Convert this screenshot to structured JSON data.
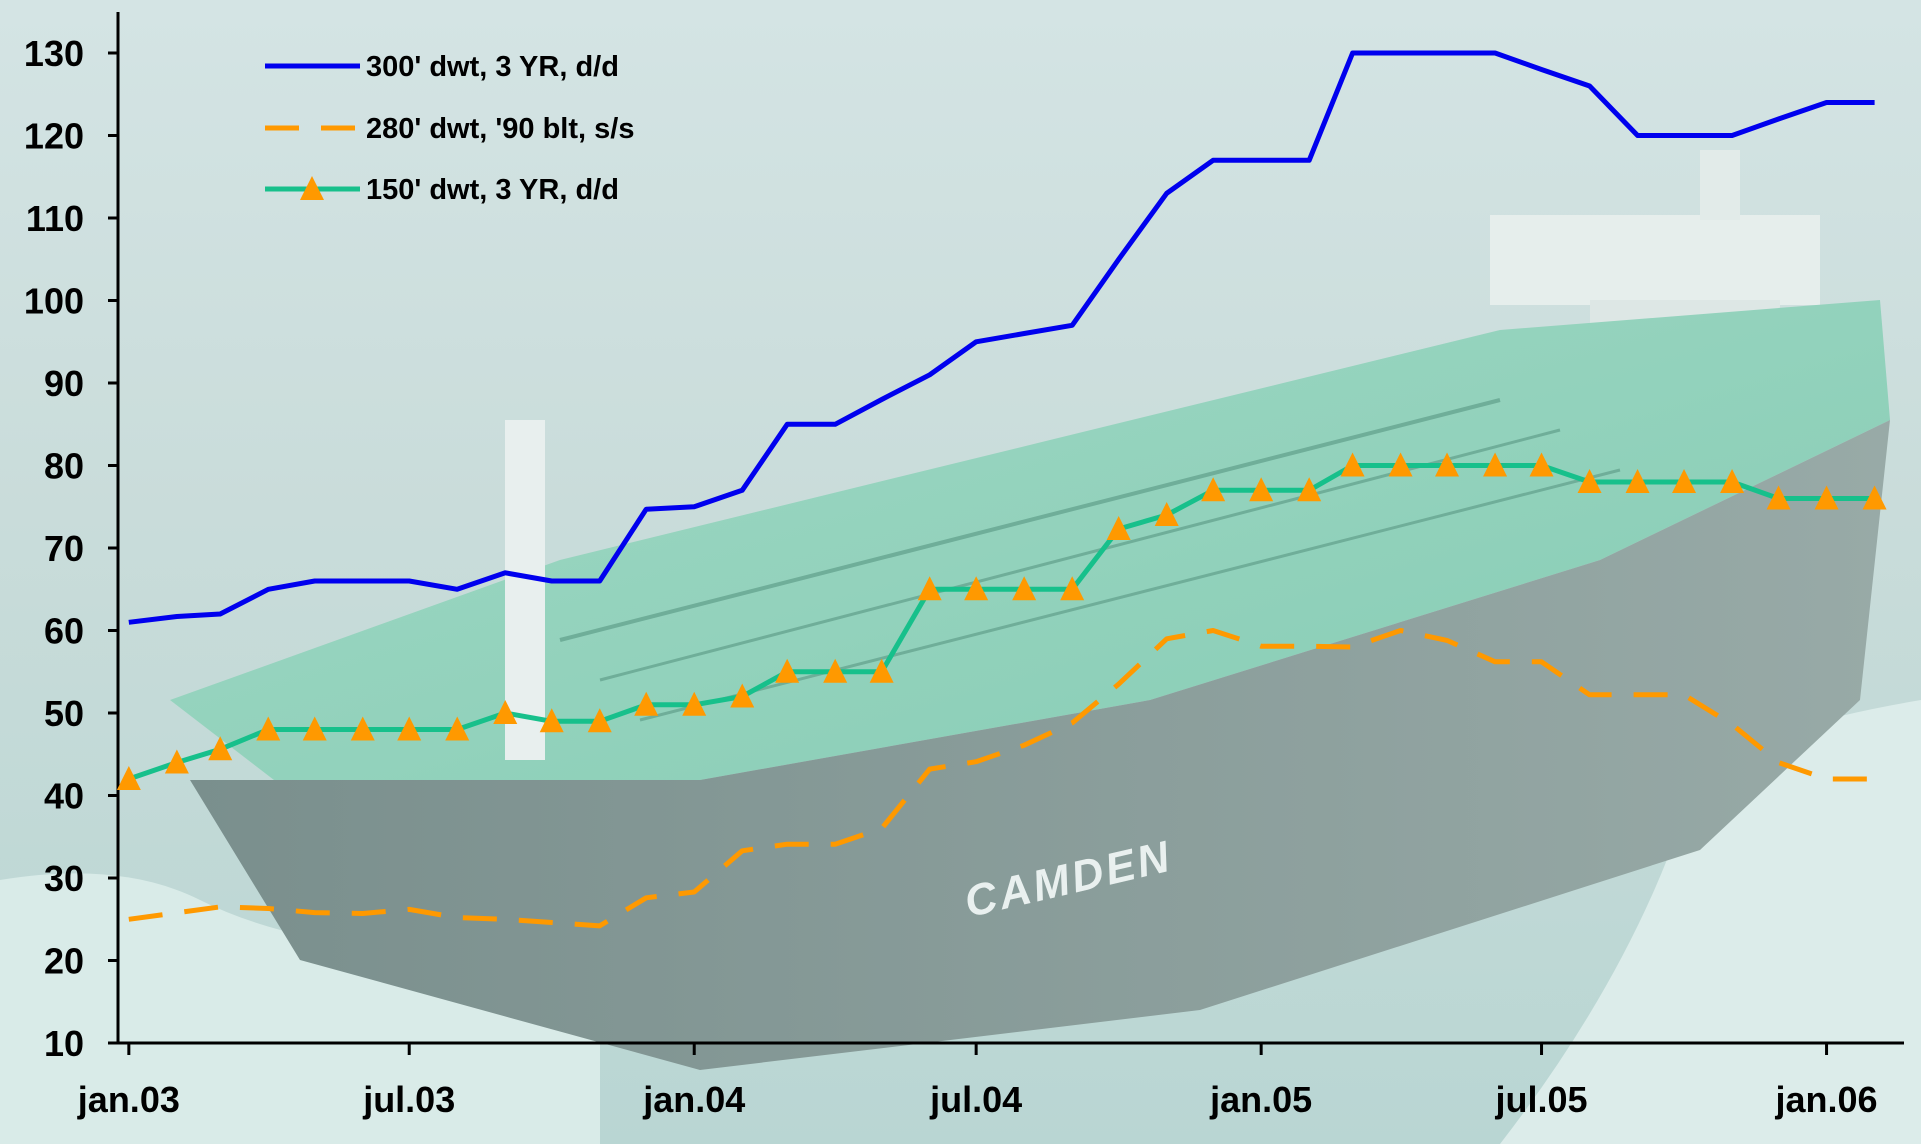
{
  "chart_data": {
    "type": "line",
    "title": "",
    "xlabel": "",
    "ylabel": "",
    "ylim": [
      10,
      130
    ],
    "yticks": [
      10,
      20,
      30,
      40,
      50,
      60,
      70,
      80,
      90,
      100,
      110,
      120,
      130
    ],
    "xlim": [
      "2002-12-25",
      "2006-02-20"
    ],
    "xtick_labels": [
      "jan.03",
      "jul.03",
      "jan.04",
      "jul.04",
      "jan.05",
      "jul.05",
      "jan.06"
    ],
    "xtick_dates": [
      "2003-01-01",
      "2003-07-01",
      "2004-01-01",
      "2004-07-01",
      "2005-01-01",
      "2005-07-01",
      "2006-01-01"
    ],
    "grid": false,
    "legend_position": "top-left",
    "background": "photo of oil tanker CAMDEN at sea",
    "series": [
      {
        "name": "300' dwt, 3 YR, d/d",
        "color": "#0000ee",
        "style": "solid",
        "marker": "none",
        "x": [
          "2003-01-01",
          "2003-02-01",
          "2003-03-01",
          "2003-04-01",
          "2003-05-01",
          "2003-06-01",
          "2003-07-01",
          "2003-08-01",
          "2003-09-01",
          "2003-10-01",
          "2003-11-01",
          "2003-12-01",
          "2004-01-01",
          "2004-02-01",
          "2004-03-01",
          "2004-04-01",
          "2004-05-01",
          "2004-06-01",
          "2004-07-01",
          "2004-08-01",
          "2004-09-01",
          "2004-10-01",
          "2004-11-01",
          "2004-12-01",
          "2005-01-01",
          "2005-02-01",
          "2005-03-01",
          "2005-04-01",
          "2005-05-01",
          "2005-06-01",
          "2005-07-01",
          "2005-08-01",
          "2005-09-01",
          "2005-10-01",
          "2005-11-01",
          "2005-12-01",
          "2006-01-01",
          "2006-02-01"
        ],
        "y": [
          61,
          61.7,
          62,
          65,
          66,
          66,
          66,
          65,
          67,
          66,
          66,
          74.7,
          75,
          77,
          85,
          85,
          88,
          91,
          95,
          96,
          97,
          105,
          113,
          117,
          117,
          117,
          130,
          130,
          130,
          130,
          128,
          126,
          120,
          120,
          120,
          122,
          124,
          124
        ]
      },
      {
        "name": "280' dwt, '90 blt, s/s",
        "color": "#ff9900",
        "style": "dashed",
        "marker": "none",
        "x": [
          "2003-01-01",
          "2003-03-01",
          "2003-04-01",
          "2003-05-01",
          "2003-06-01",
          "2003-07-01",
          "2003-08-01",
          "2003-09-01",
          "2003-10-01",
          "2003-11-01",
          "2003-12-01",
          "2004-01-01",
          "2004-02-01",
          "2004-03-01",
          "2004-04-01",
          "2004-05-01",
          "2004-06-01",
          "2004-07-01",
          "2004-08-01",
          "2004-09-01",
          "2004-10-01",
          "2004-11-01",
          "2004-12-01",
          "2005-01-01",
          "2005-02-01",
          "2005-03-01",
          "2005-04-01",
          "2005-05-01",
          "2005-06-01",
          "2005-07-01",
          "2005-08-01",
          "2005-09-01",
          "2005-10-01",
          "2005-11-01",
          "2005-12-01",
          "2006-01-01",
          "2006-02-01"
        ],
        "y": [
          25,
          26.5,
          26.3,
          25.8,
          25.7,
          26.2,
          25.2,
          25,
          24.6,
          24.2,
          27.6,
          28.3,
          33.3,
          34.1,
          34.1,
          36,
          43.2,
          44.1,
          46.1,
          48.8,
          53.5,
          59,
          60,
          58.1,
          58.1,
          58,
          60,
          58.8,
          56.2,
          56.2,
          52.2,
          52.2,
          52.2,
          48.6,
          44,
          42,
          42
        ]
      },
      {
        "name": "150' dwt, 3 YR, d/d",
        "color": "#17c08b",
        "style": "solid",
        "marker": "triangle",
        "marker_color": "#ff9900",
        "x": [
          "2003-01-01",
          "2003-02-01",
          "2003-03-01",
          "2003-04-01",
          "2003-05-01",
          "2003-06-01",
          "2003-07-01",
          "2003-08-01",
          "2003-09-01",
          "2003-10-01",
          "2003-11-01",
          "2003-12-01",
          "2004-01-01",
          "2004-02-01",
          "2004-03-01",
          "2004-04-01",
          "2004-05-01",
          "2004-06-01",
          "2004-07-01",
          "2004-08-01",
          "2004-09-01",
          "2004-10-01",
          "2004-11-01",
          "2004-12-01",
          "2005-01-01",
          "2005-02-01",
          "2005-03-01",
          "2005-04-01",
          "2005-05-01",
          "2005-06-01",
          "2005-07-01",
          "2005-08-01",
          "2005-09-01",
          "2005-10-01",
          "2005-11-01",
          "2005-12-01",
          "2006-01-01",
          "2006-02-01"
        ],
        "y": [
          42,
          44,
          45.6,
          48,
          48,
          48,
          48,
          48,
          50,
          49,
          49,
          51,
          51,
          52,
          55,
          55,
          55,
          65,
          65,
          65,
          65,
          72.3,
          74,
          77,
          77,
          77,
          80,
          80,
          80,
          80,
          80,
          78,
          78,
          78,
          78,
          76,
          76,
          76
        ]
      }
    ]
  },
  "photo_text": "CAMDEN"
}
